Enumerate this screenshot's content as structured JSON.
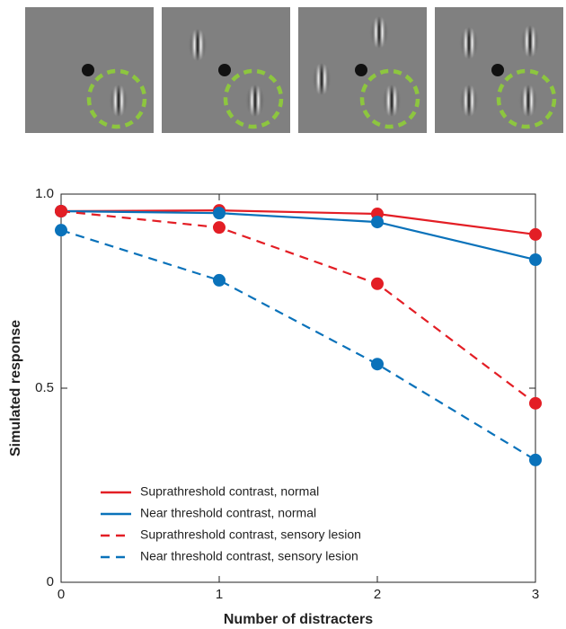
{
  "chart_data": {
    "type": "line",
    "xlabel": "Number of distracters",
    "ylabel": "Simulated response",
    "x": [
      0,
      1,
      2,
      3
    ],
    "xlim": [
      0,
      3
    ],
    "xticks": [
      0,
      1,
      2,
      3
    ],
    "ylim": [
      0,
      1
    ],
    "yticks": [
      0,
      0.5,
      {
        "value": 1,
        "label": "1.0"
      }
    ],
    "legend": "lower left",
    "series": [
      {
        "name": "Suprathreshold contrast, normal",
        "color": "#e31e25",
        "linestyle": "solid",
        "values": [
          0.956,
          0.958,
          0.949,
          0.896
        ]
      },
      {
        "name": "Near threshold contrast, normal",
        "color": "#0a72ba",
        "linestyle": "solid",
        "values": [
          0.956,
          0.951,
          0.928,
          0.831
        ]
      },
      {
        "name": "Suprathreshold contrast, sensory lesion",
        "color": "#e31e25",
        "linestyle": "dashed",
        "values": [
          0.956,
          0.914,
          0.769,
          0.461
        ]
      },
      {
        "name": "Near threshold contrast, sensory lesion",
        "color": "#0a72ba",
        "linestyle": "dashed",
        "values": [
          0.907,
          0.778,
          0.562,
          0.315
        ]
      }
    ]
  }
}
